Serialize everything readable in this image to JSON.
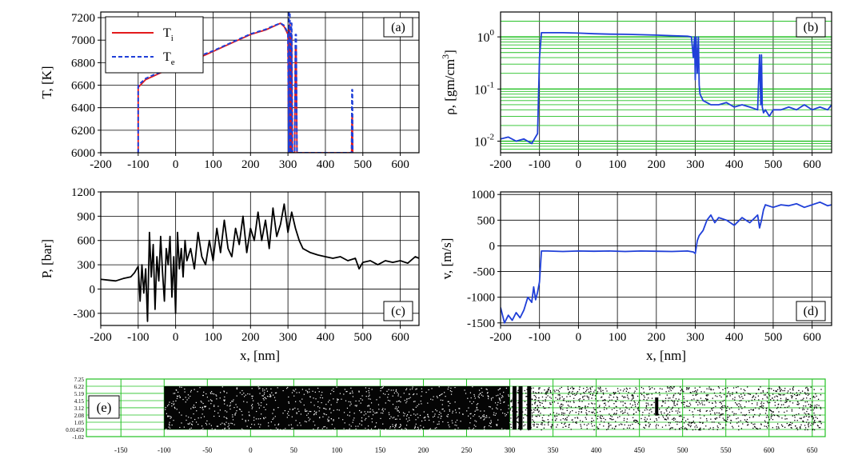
{
  "colors": {
    "ion": "#e31a1c",
    "electron": "#1f3fd8",
    "density": "#1f3fd8",
    "pressure": "#000000",
    "velocity": "#1f3fd8",
    "grid_gray": "#000000",
    "grid_green": "#22c022",
    "particles": "#000000"
  },
  "chart_data": [
    {
      "id": "a",
      "panel_label": "(a)",
      "type": "line",
      "ylabel": "T, [K]",
      "xlabel": "",
      "xlim": [
        -200,
        650
      ],
      "ylim": [
        6000,
        7250
      ],
      "xticks": [
        -200,
        -100,
        0,
        100,
        200,
        300,
        400,
        500,
        600
      ],
      "yticks": [
        6000,
        6200,
        6400,
        6600,
        6800,
        7000,
        7200
      ],
      "grid": true,
      "legend": "top-left",
      "series": [
        {
          "name": "Ti",
          "label_main": "T",
          "label_sub": "i",
          "style": "solid",
          "x": [
            -100,
            -100,
            -80,
            -60,
            -40,
            -20,
            0,
            20,
            40,
            60,
            80,
            100,
            120,
            140,
            160,
            180,
            200,
            220,
            240,
            260,
            280,
            290,
            300,
            302,
            303,
            305,
            306,
            308,
            309,
            310,
            312,
            313,
            318,
            320,
            322,
            324,
            326,
            470,
            471,
            472,
            473
          ],
          "y": [
            6000,
            6580,
            6650,
            6680,
            6710,
            6730,
            6760,
            6790,
            6820,
            6840,
            6870,
            6900,
            6930,
            6960,
            6990,
            7020,
            7050,
            7070,
            7090,
            7120,
            7150,
            7120,
            7050,
            6000,
            7100,
            7150,
            6000,
            6000,
            7050,
            7050,
            6000,
            6000,
            6000,
            6950,
            6950,
            6000,
            6000,
            6000,
            6320,
            6320,
            6000
          ]
        },
        {
          "name": "Te",
          "label_main": "T",
          "label_sub": "e",
          "style": "dashed",
          "x": [
            -100,
            -100,
            -80,
            -60,
            -40,
            -20,
            0,
            20,
            40,
            60,
            80,
            100,
            120,
            140,
            160,
            180,
            200,
            220,
            240,
            260,
            280,
            290,
            300,
            302,
            303,
            305,
            306,
            308,
            309,
            310,
            312,
            313,
            318,
            320,
            322,
            324,
            326,
            470,
            471,
            472,
            473
          ],
          "y": [
            6000,
            6600,
            6660,
            6690,
            6715,
            6740,
            6765,
            6800,
            6825,
            6850,
            6880,
            6905,
            6935,
            6965,
            6995,
            7025,
            7055,
            7075,
            7095,
            7125,
            7150,
            7130,
            7060,
            6000,
            7250,
            7250,
            6000,
            6000,
            7150,
            7150,
            6000,
            6000,
            6000,
            7050,
            7050,
            6000,
            6000,
            6000,
            6560,
            6560,
            6000
          ]
        }
      ]
    },
    {
      "id": "b",
      "panel_label": "(b)",
      "type": "line",
      "ylabel": "ρ, [gm/cm",
      "ylabel_sup": "3",
      "ylabel_end": "]",
      "xlabel": "",
      "yscale": "log",
      "xlim": [
        -200,
        650
      ],
      "ylim": [
        0.006,
        3
      ],
      "xticks": [
        -200,
        -100,
        0,
        100,
        200,
        300,
        400,
        500,
        600
      ],
      "ytick_labels": [
        {
          "value": 1,
          "base": "10",
          "exp": "0"
        },
        {
          "value": 0.1,
          "base": "10",
          "exp": "-1"
        },
        {
          "value": 0.01,
          "base": "10",
          "exp": "-2"
        }
      ],
      "grid": true,
      "series": [
        {
          "x": [
            -200,
            -180,
            -160,
            -140,
            -120,
            -105,
            -100,
            -95,
            -80,
            -40,
            0,
            40,
            80,
            120,
            160,
            200,
            240,
            280,
            290,
            295,
            298,
            300,
            302,
            305,
            308,
            310,
            312,
            320,
            330,
            340,
            360,
            380,
            400,
            420,
            440,
            460,
            465,
            468,
            470,
            472,
            475,
            480,
            490,
            500,
            520,
            540,
            560,
            580,
            600,
            620,
            640,
            650
          ],
          "y": [
            0.011,
            0.012,
            0.01,
            0.011,
            0.009,
            0.014,
            0.4,
            1.2,
            1.2,
            1.2,
            1.18,
            1.15,
            1.13,
            1.12,
            1.1,
            1.08,
            1.05,
            1.03,
            1.0,
            0.4,
            1.0,
            0.15,
            1.0,
            0.2,
            1.0,
            0.12,
            0.08,
            0.06,
            0.055,
            0.05,
            0.05,
            0.055,
            0.045,
            0.05,
            0.045,
            0.04,
            0.45,
            0.05,
            0.45,
            0.045,
            0.035,
            0.04,
            0.03,
            0.04,
            0.04,
            0.045,
            0.04,
            0.05,
            0.04,
            0.045,
            0.04,
            0.05
          ]
        }
      ]
    },
    {
      "id": "c",
      "panel_label": "(c)",
      "type": "line",
      "ylabel": "P, [bar]",
      "xlabel": "x, [nm]",
      "xlim": [
        -200,
        650
      ],
      "ylim": [
        -450,
        1200
      ],
      "xticks": [
        -200,
        -100,
        0,
        100,
        200,
        300,
        400,
        500,
        600
      ],
      "yticks": [
        -300,
        0,
        300,
        600,
        900,
        1200
      ],
      "grid": true,
      "series": [
        {
          "x": [
            -200,
            -180,
            -160,
            -140,
            -120,
            -110,
            -100,
            -95,
            -90,
            -85,
            -80,
            -75,
            -70,
            -65,
            -60,
            -55,
            -50,
            -45,
            -40,
            -35,
            -30,
            -25,
            -20,
            -15,
            -10,
            -5,
            0,
            5,
            10,
            15,
            20,
            25,
            30,
            40,
            50,
            60,
            70,
            80,
            90,
            100,
            110,
            120,
            130,
            140,
            150,
            160,
            170,
            180,
            190,
            200,
            210,
            220,
            230,
            240,
            250,
            260,
            270,
            280,
            290,
            300,
            310,
            320,
            330,
            340,
            360,
            380,
            400,
            420,
            440,
            460,
            480,
            490,
            500,
            520,
            540,
            560,
            580,
            600,
            620,
            640,
            650
          ],
          "y": [
            120,
            110,
            100,
            130,
            150,
            200,
            280,
            -150,
            300,
            -50,
            250,
            -400,
            700,
            150,
            550,
            -250,
            400,
            100,
            650,
            200,
            -150,
            500,
            300,
            650,
            -100,
            400,
            -300,
            700,
            250,
            500,
            150,
            600,
            350,
            500,
            250,
            700,
            400,
            300,
            600,
            350,
            750,
            450,
            850,
            500,
            400,
            750,
            550,
            900,
            450,
            750,
            600,
            950,
            600,
            850,
            500,
            1000,
            650,
            800,
            1050,
            700,
            950,
            750,
            600,
            500,
            450,
            420,
            400,
            380,
            400,
            350,
            380,
            250,
            330,
            350,
            300,
            350,
            330,
            350,
            320,
            400,
            380
          ]
        }
      ]
    },
    {
      "id": "d",
      "panel_label": "(d)",
      "type": "line",
      "ylabel": "v, [m/s]",
      "xlabel": "x, [nm]",
      "xlim": [
        -200,
        650
      ],
      "ylim": [
        -1550,
        1050
      ],
      "xticks": [
        -200,
        -100,
        0,
        100,
        200,
        300,
        400,
        500,
        600
      ],
      "yticks": [
        -1500,
        -1000,
        -500,
        0,
        500,
        1000
      ],
      "grid": true,
      "series": [
        {
          "x": [
            -200,
            -190,
            -180,
            -170,
            -160,
            -150,
            -140,
            -130,
            -120,
            -115,
            -110,
            -105,
            -100,
            -95,
            -80,
            -40,
            0,
            40,
            80,
            120,
            160,
            200,
            240,
            280,
            295,
            300,
            305,
            310,
            320,
            330,
            340,
            350,
            360,
            380,
            400,
            420,
            440,
            460,
            465,
            470,
            475,
            480,
            500,
            520,
            540,
            560,
            580,
            600,
            620,
            640,
            650
          ],
          "y": [
            -1200,
            -1500,
            -1350,
            -1450,
            -1300,
            -1400,
            -1250,
            -1000,
            -1100,
            -800,
            -1050,
            -900,
            -700,
            -100,
            -100,
            -110,
            -100,
            -105,
            -100,
            -110,
            -100,
            -105,
            -110,
            -100,
            -120,
            -150,
            100,
            200,
            300,
            500,
            600,
            450,
            550,
            500,
            400,
            550,
            450,
            600,
            350,
            500,
            700,
            800,
            750,
            800,
            780,
            820,
            750,
            800,
            850,
            780,
            800
          ]
        }
      ]
    },
    {
      "id": "e",
      "panel_label": "(e)",
      "type": "scatter",
      "xlim": [
        -190,
        665
      ],
      "ylim": [
        -1.02,
        7.25
      ],
      "xticks": [
        -150,
        -100,
        -50,
        0,
        50,
        100,
        150,
        200,
        250,
        300,
        350,
        400,
        450,
        500,
        550,
        600,
        650
      ],
      "ytick_labels": [
        "7.25",
        "6.22",
        "5.19",
        "4.15",
        "3.12",
        "2.08",
        "1.05",
        "0.01459",
        "-1.02"
      ],
      "ytick_values": [
        7.25,
        6.22,
        5.19,
        4.15,
        3.12,
        2.08,
        1.05,
        0.01459,
        -1.02
      ],
      "grid": true,
      "dense_region": [
        -100,
        300
      ],
      "dark_bands": [
        305,
        312,
        322
      ],
      "cluster_band": 470,
      "y_band": [
        0.0,
        6.22
      ]
    }
  ]
}
